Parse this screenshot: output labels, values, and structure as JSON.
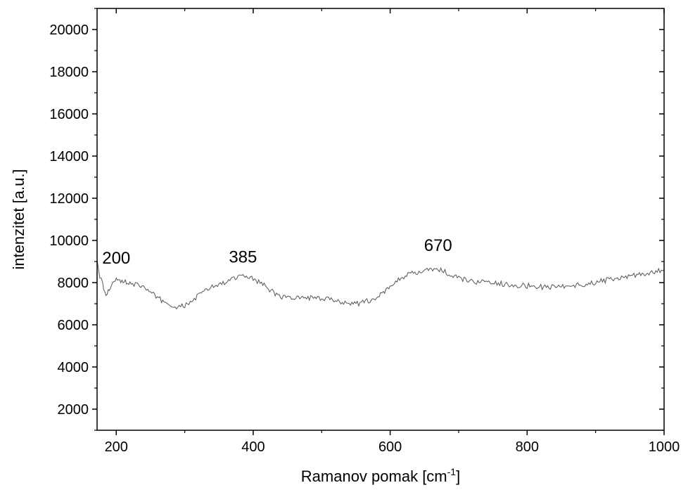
{
  "chart_data": {
    "type": "line",
    "title": "",
    "xlabel": "Ramanov pomak [cm",
    "xlabel_sup": "-1",
    "xlabel_suffix": "]",
    "ylabel": "intenzitet [a.u.]",
    "xlim": [
      172,
      1000
    ],
    "ylim": [
      1000,
      21000
    ],
    "x_ticks": [
      200,
      400,
      600,
      800,
      1000
    ],
    "x_tick_labels": [
      "200",
      "400",
      "600",
      "800",
      "1000"
    ],
    "y_ticks": [
      2000,
      4000,
      6000,
      8000,
      10000,
      12000,
      14000,
      16000,
      18000,
      20000
    ],
    "y_tick_labels": [
      "2000",
      "4000",
      "6000",
      "8000",
      "10000",
      "12000",
      "14000",
      "16000",
      "18000",
      "20000"
    ],
    "grid": false,
    "line_color": "#555555",
    "series": [
      {
        "x": [
          172,
          176,
          180,
          185,
          190,
          195,
          200,
          205,
          210,
          215,
          220,
          230,
          240,
          250,
          260,
          270,
          280,
          290,
          300,
          310,
          320,
          330,
          340,
          350,
          360,
          370,
          380,
          385,
          390,
          400,
          410,
          420,
          430,
          440,
          450,
          460,
          470,
          480,
          490,
          500,
          510,
          520,
          530,
          540,
          550,
          560,
          570,
          580,
          590,
          600,
          610,
          620,
          630,
          640,
          650,
          660,
          670,
          680,
          690,
          700,
          720,
          740,
          760,
          780,
          800,
          820,
          840,
          860,
          880,
          900,
          920,
          940,
          960,
          980,
          1000
        ],
        "y": [
          9000,
          8300,
          7900,
          7500,
          7600,
          8000,
          8200,
          8100,
          8050,
          8000,
          8000,
          7900,
          7800,
          7500,
          7300,
          7100,
          6900,
          6800,
          6900,
          7100,
          7400,
          7600,
          7800,
          7900,
          8000,
          8150,
          8250,
          8300,
          8300,
          8200,
          8000,
          7800,
          7500,
          7350,
          7300,
          7250,
          7250,
          7300,
          7250,
          7200,
          7200,
          7150,
          7100,
          7050,
          7000,
          7050,
          7150,
          7300,
          7500,
          7800,
          8100,
          8300,
          8400,
          8450,
          8550,
          8600,
          8650,
          8500,
          8300,
          8200,
          8050,
          8000,
          7950,
          7900,
          7850,
          7800,
          7800,
          7850,
          7900,
          8000,
          8150,
          8250,
          8350,
          8450,
          8600
        ]
      }
    ],
    "annotations": [
      {
        "text": "200",
        "x": 200,
        "y": 8900
      },
      {
        "text": "385",
        "x": 385,
        "y": 8950
      },
      {
        "text": "670",
        "x": 670,
        "y": 9500
      }
    ]
  }
}
